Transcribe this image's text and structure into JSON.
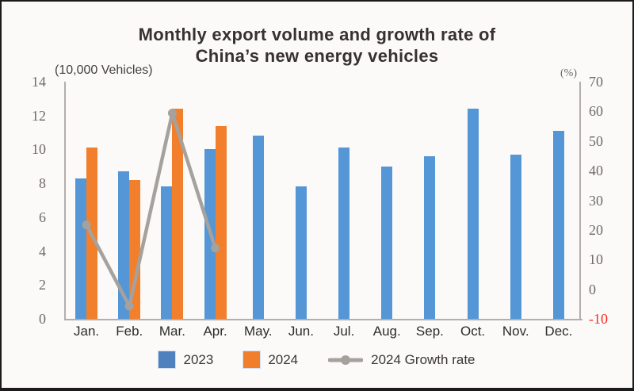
{
  "title": {
    "line1": "Monthly export volume and growth rate of",
    "line2": "China’s new energy vehicles"
  },
  "axes": {
    "left_unit": "(10,000 Vehicles)",
    "right_unit": "(%)",
    "left_ticks": [
      14,
      12,
      10,
      8,
      6,
      4,
      2,
      0
    ],
    "right_ticks": [
      70,
      60,
      50,
      40,
      30,
      20,
      10,
      0,
      -10
    ],
    "left_range": [
      0,
      14
    ],
    "right_range": [
      -10,
      70
    ]
  },
  "chart_data": {
    "type": "bar",
    "title": "Monthly export volume and growth rate of China’s new energy vehicles",
    "categories": [
      "Jan.",
      "Feb.",
      "Mar.",
      "Apr.",
      "May.",
      "Jun.",
      "Jul.",
      "Aug.",
      "Sep.",
      "Oct.",
      "Nov.",
      "Dec."
    ],
    "series": [
      {
        "name": "2023",
        "type": "bar",
        "axis": "left",
        "values": [
          8.3,
          8.7,
          7.8,
          10.0,
          10.8,
          7.8,
          10.1,
          9.0,
          9.6,
          12.4,
          9.7,
          11.1
        ]
      },
      {
        "name": "2024",
        "type": "bar",
        "axis": "left",
        "values": [
          10.1,
          8.2,
          12.4,
          11.4,
          null,
          null,
          null,
          null,
          null,
          null,
          null,
          null
        ]
      },
      {
        "name": "2024 Growth rate",
        "type": "line",
        "axis": "right",
        "values": [
          21.7,
          -5.7,
          59.4,
          13.9,
          null,
          null,
          null,
          null,
          null,
          null,
          null,
          null
        ]
      }
    ],
    "xlabel": "",
    "ylabel_left": "(10,000 Vehicles)",
    "ylabel_right": "(%)",
    "ylim_left": [
      0,
      14
    ],
    "ylim_right": [
      -10,
      70
    ],
    "grid": false,
    "legend_position": "bottom"
  },
  "legend": {
    "items": [
      {
        "label": "2023",
        "type": "square"
      },
      {
        "label": "2024",
        "type": "square"
      },
      {
        "label": "2024 Growth rate",
        "type": "line"
      }
    ]
  },
  "colors": {
    "background": "#fbfaf9",
    "frame_border": "#1d1b1b",
    "title_text": "#383032",
    "axis_line": "#b2aeab",
    "tick_text": "#6e6a67",
    "negative_tick_text": "#fb2b20",
    "month_text": "#2f2b2c",
    "bar_2023": "#5496d6",
    "bar_2024": "#f27f2c",
    "legend_swatch_2023": "#4e81bd",
    "legend_swatch_2024": "#f07e2c",
    "growth_line": "#a5a19d"
  }
}
